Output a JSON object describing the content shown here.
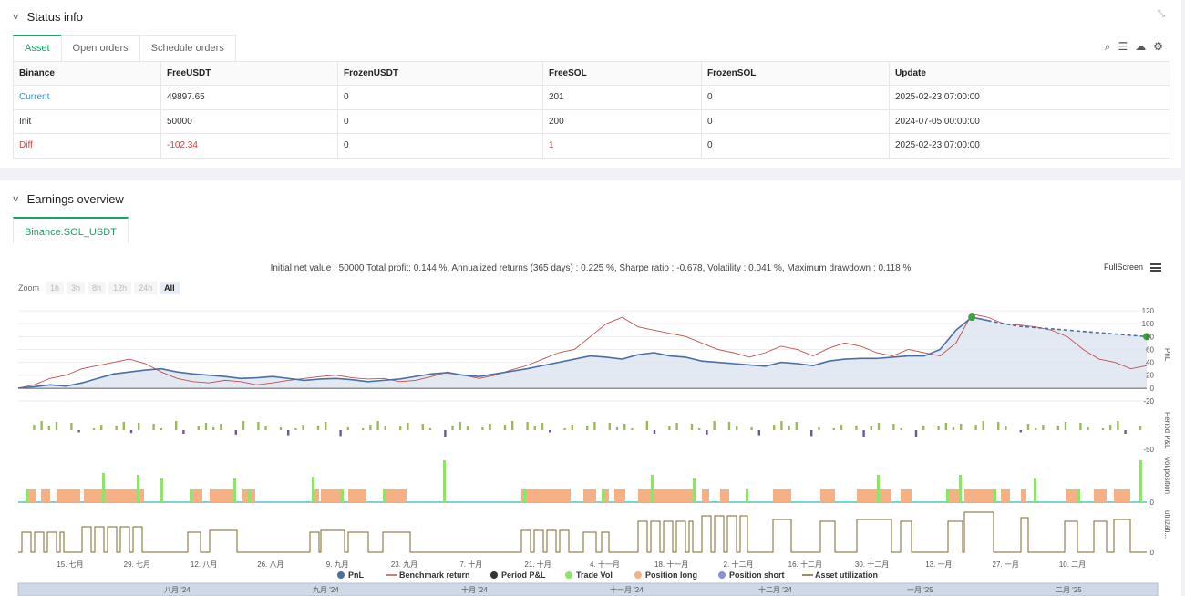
{
  "status": {
    "title": "Status info",
    "tabs": [
      "Asset",
      "Open orders",
      "Schedule orders"
    ],
    "columns": [
      "Binance",
      "FreeUSDT",
      "FrozenUSDT",
      "FreeSOL",
      "FrozenSOL",
      "Update"
    ],
    "rows": [
      {
        "label": "Current",
        "free_usdt": "49897.65",
        "frozen_usdt": "0",
        "free_sol": "201",
        "frozen_sol": "0",
        "update": "2025-02-23 07:00:00"
      },
      {
        "label": "Init",
        "free_usdt": "50000",
        "frozen_usdt": "0",
        "free_sol": "200",
        "frozen_sol": "0",
        "update": "2024-07-05 00:00:00"
      },
      {
        "label": "Diff",
        "free_usdt": "-102.34",
        "frozen_usdt": "0",
        "free_sol": "1",
        "frozen_sol": "0",
        "update": "2025-02-23 07:00:00"
      }
    ]
  },
  "earnings": {
    "title": "Earnings overview",
    "tab": "Binance.SOL_USDT",
    "stats": "Initial net value : 50000 Total profit: 0.144 %, Annualized returns (365 days) : 0.225 %, Sharpe ratio : -0.678, Volatility : 0.041 %, Maximum drawdown : 0.118 %",
    "fullscreen": "FullScreen",
    "zoom_label": "Zoom",
    "zoom_options": [
      "1h",
      "3h",
      "8h",
      "12h",
      "24h",
      "All"
    ]
  },
  "colors": {
    "pnl": "#4a6fa5",
    "benchmark": "#c0504d",
    "period_up": "#9bbb59",
    "period_down": "#6a5a9a",
    "trade_vol": "#8ee36a",
    "position_long": "#f5b183",
    "utilization": "#7a6a2a"
  },
  "chart_data": {
    "type": "line",
    "x_ticks": [
      "15. 七月",
      "29. 七月",
      "12. 八月",
      "26. 八月",
      "9. 九月",
      "23. 九月",
      "7. 十月",
      "21. 十月",
      "4. 十一月",
      "18. 十一月",
      "2. 十二月",
      "16. 十二月",
      "30. 十二月",
      "13. 一月",
      "27. 一月",
      "10. 二月"
    ],
    "navigator_ticks": [
      "八月 '24",
      "九月 '24",
      "十月 '24",
      "十一月 '24",
      "十二月 '24",
      "一月 '25",
      "二月 '25"
    ],
    "pnl_axis": {
      "label": "PnL",
      "ticks": [
        120,
        100,
        80,
        60,
        40,
        20,
        0,
        -20
      ],
      "ylim": [
        -20,
        130
      ]
    },
    "period_axis": {
      "label": "Period P&L",
      "ticks": [
        -50
      ]
    },
    "vol_axis": {
      "label": "vol/position",
      "ticks": [
        0
      ]
    },
    "util_axis": {
      "label": "utilizati...",
      "ticks": [
        0
      ]
    },
    "series": [
      {
        "name": "PnL",
        "values": [
          0,
          2,
          5,
          3,
          8,
          15,
          22,
          25,
          28,
          30,
          25,
          22,
          20,
          18,
          15,
          16,
          18,
          15,
          12,
          14,
          15,
          13,
          10,
          12,
          14,
          18,
          22,
          24,
          20,
          18,
          22,
          26,
          30,
          35,
          40,
          45,
          50,
          48,
          45,
          52,
          55,
          50,
          48,
          42,
          40,
          38,
          36,
          34,
          40,
          38,
          35,
          42,
          45,
          46,
          46,
          48,
          50,
          50,
          60,
          90,
          110,
          105,
          100,
          96,
          94,
          92,
          90,
          88,
          86,
          84,
          82,
          80
        ]
      },
      {
        "name": "Benchmark return",
        "values": [
          0,
          5,
          15,
          20,
          30,
          35,
          40,
          45,
          38,
          25,
          15,
          10,
          8,
          12,
          10,
          5,
          8,
          12,
          15,
          18,
          20,
          16,
          14,
          15,
          10,
          12,
          18,
          25,
          20,
          15,
          20,
          28,
          35,
          45,
          55,
          60,
          80,
          100,
          110,
          95,
          90,
          85,
          80,
          70,
          60,
          55,
          48,
          55,
          65,
          60,
          50,
          62,
          70,
          65,
          55,
          50,
          60,
          55,
          50,
          70,
          115,
          110,
          100,
          98,
          95,
          90,
          80,
          60,
          45,
          40,
          30,
          35
        ]
      },
      {
        "name": "Period P&L"
      },
      {
        "name": "Trade Vol"
      },
      {
        "name": "Position long"
      },
      {
        "name": "Position short"
      },
      {
        "name": "Asset utilization"
      }
    ]
  }
}
